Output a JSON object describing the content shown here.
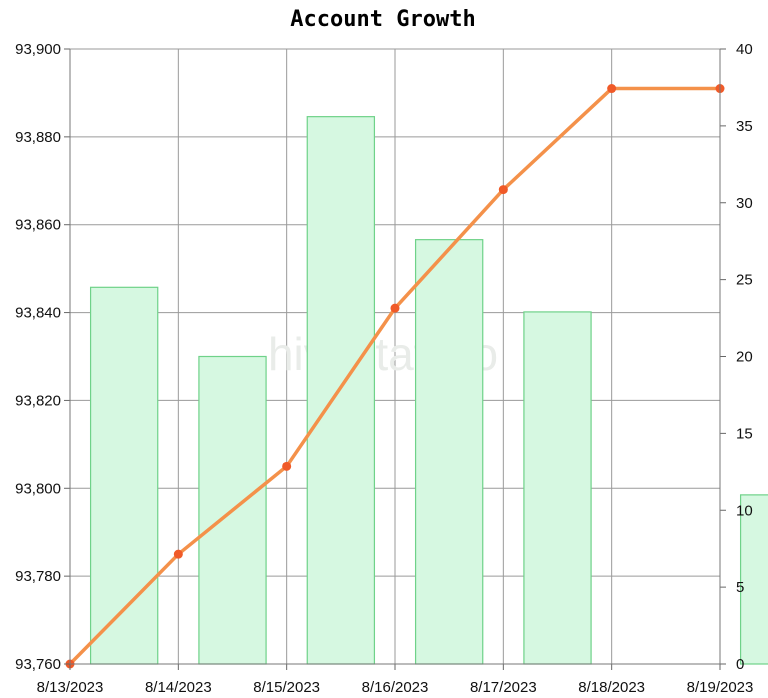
{
  "chart_data": {
    "type": "bar+line",
    "title": "Account Growth",
    "watermark": "hivestats.io",
    "x": [
      "8/13/2023",
      "8/14/2023",
      "8/15/2023",
      "8/16/2023",
      "8/17/2023",
      "8/18/2023",
      "8/19/2023"
    ],
    "y_left": {
      "ylim": [
        93760,
        93900
      ],
      "ticks": [
        "93,760",
        "93,780",
        "93,800",
        "93,820",
        "93,840",
        "93,860",
        "93,880",
        "93,900"
      ]
    },
    "y_right": {
      "ylim": [
        0,
        40
      ],
      "ticks": [
        "0",
        "5",
        "10",
        "15",
        "20",
        "25",
        "30",
        "35",
        "40"
      ]
    },
    "series": [
      {
        "kind": "line",
        "axis": "left",
        "color": "#f4914a",
        "marker_color": "#f05a28",
        "values": [
          93760,
          93785,
          93805,
          93841,
          93868,
          93891,
          93891
        ]
      },
      {
        "kind": "bar",
        "axis": "right",
        "fill": "#d6f8e1",
        "stroke": "#6fd289",
        "values": [
          24.5,
          20,
          35.6,
          27.6,
          22.9,
          0,
          11
        ]
      }
    ],
    "grid": true
  }
}
